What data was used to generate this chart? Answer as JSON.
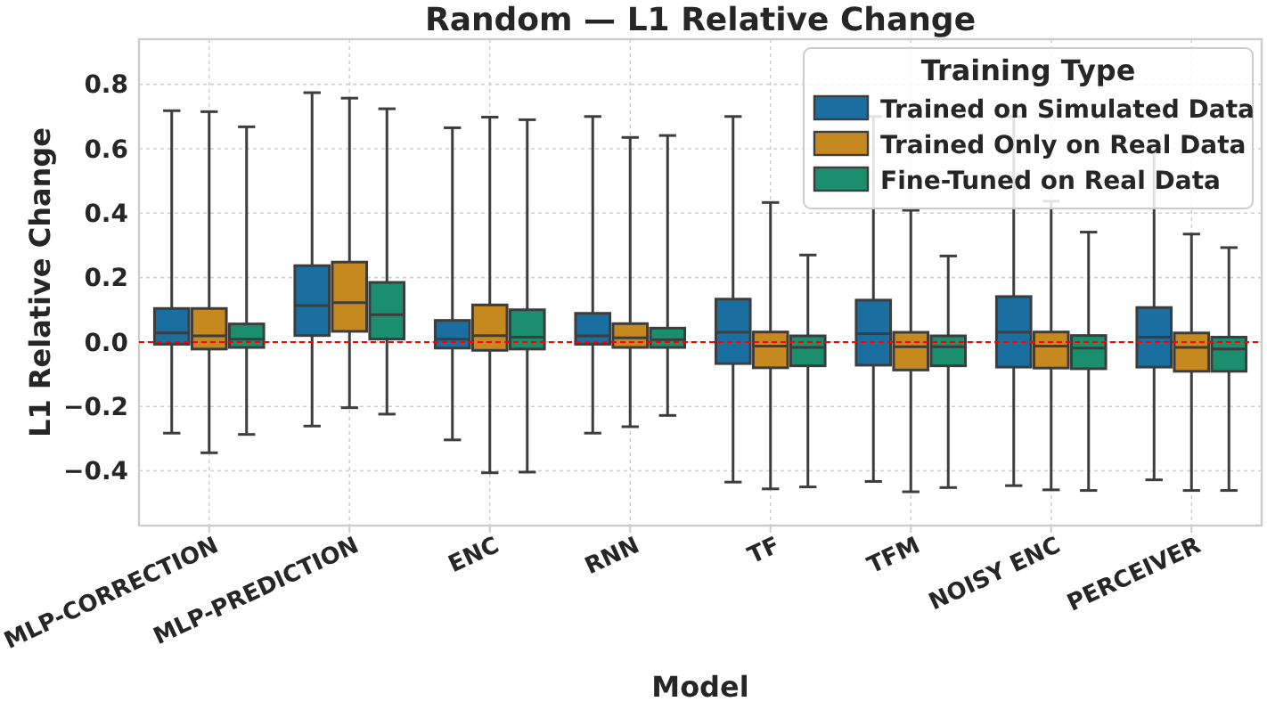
{
  "chart_data": {
    "type": "box",
    "title": "Random — L1 Relative Change",
    "xlabel": "Model",
    "ylabel": "L1 Relative Change",
    "legend_title": "Training Type",
    "legend": "top right",
    "grid": true,
    "categories": [
      "MLP-CORRECTION",
      "MLP-PREDICTION",
      "ENC",
      "RNN",
      "TF",
      "TFM",
      "NOISY ENC",
      "PERCEIVER"
    ],
    "ylim": [
      -0.57,
      0.94
    ],
    "yticks": [
      {
        "value": -0.4,
        "label": "−0.4"
      },
      {
        "value": -0.2,
        "label": "−0.2"
      },
      {
        "value": 0,
        "label": "0.0"
      },
      {
        "value": 0.2,
        "label": "0.2"
      },
      {
        "value": 0.4,
        "label": "0.4"
      },
      {
        "value": 0.6,
        "label": "0.6"
      },
      {
        "value": 0.8,
        "label": "0.8"
      }
    ],
    "ref_lines": [
      {
        "axis": "y",
        "value": 0,
        "color": "#ff0000",
        "line_style": "dashed"
      }
    ],
    "series": [
      {
        "name": "Trained on Simulated Data",
        "color": "#1a6fa0",
        "boxes": [
          {
            "low": -0.283,
            "q1": -0.007,
            "median": 0.028,
            "q3": 0.104,
            "high": 0.718
          },
          {
            "low": -0.261,
            "q1": 0.02,
            "median": 0.113,
            "q3": 0.237,
            "high": 0.774
          },
          {
            "low": -0.304,
            "q1": -0.019,
            "median": 0.009,
            "q3": 0.067,
            "high": 0.665
          },
          {
            "low": -0.283,
            "q1": -0.007,
            "median": 0.019,
            "q3": 0.089,
            "high": 0.7
          },
          {
            "low": -0.435,
            "q1": -0.067,
            "median": 0.03,
            "q3": 0.133,
            "high": 0.7
          },
          {
            "low": -0.433,
            "q1": -0.072,
            "median": 0.026,
            "q3": 0.13,
            "high": 0.7
          },
          {
            "low": -0.446,
            "q1": -0.078,
            "median": 0.03,
            "q3": 0.141,
            "high": 0.7
          },
          {
            "low": -0.428,
            "q1": -0.078,
            "median": 0.015,
            "q3": 0.107,
            "high": 0.6
          }
        ]
      },
      {
        "name": "Trained Only on Real Data",
        "color": "#c5891f",
        "boxes": [
          {
            "low": -0.344,
            "q1": -0.022,
            "median": 0.019,
            "q3": 0.104,
            "high": 0.715
          },
          {
            "low": -0.204,
            "q1": 0.033,
            "median": 0.122,
            "q3": 0.248,
            "high": 0.757
          },
          {
            "low": -0.406,
            "q1": -0.026,
            "median": 0.02,
            "q3": 0.115,
            "high": 0.698
          },
          {
            "low": -0.263,
            "q1": -0.017,
            "median": 0.013,
            "q3": 0.057,
            "high": 0.635
          },
          {
            "low": -0.456,
            "q1": -0.08,
            "median": -0.013,
            "q3": 0.031,
            "high": 0.433
          },
          {
            "low": -0.465,
            "q1": -0.087,
            "median": -0.015,
            "q3": 0.03,
            "high": 0.409
          },
          {
            "low": -0.459,
            "q1": -0.081,
            "median": -0.013,
            "q3": 0.031,
            "high": 0.437
          },
          {
            "low": -0.461,
            "q1": -0.091,
            "median": -0.017,
            "q3": 0.028,
            "high": 0.335
          }
        ]
      },
      {
        "name": "Fine-Tuned on Real Data",
        "color": "#1b8f6d",
        "boxes": [
          {
            "low": -0.287,
            "q1": -0.017,
            "median": 0.009,
            "q3": 0.056,
            "high": 0.668
          },
          {
            "low": -0.224,
            "q1": 0.009,
            "median": 0.085,
            "q3": 0.185,
            "high": 0.724
          },
          {
            "low": -0.404,
            "q1": -0.022,
            "median": 0.015,
            "q3": 0.1,
            "high": 0.69
          },
          {
            "low": -0.228,
            "q1": -0.017,
            "median": 0.007,
            "q3": 0.043,
            "high": 0.641
          },
          {
            "low": -0.45,
            "q1": -0.074,
            "median": -0.017,
            "q3": 0.019,
            "high": 0.27
          },
          {
            "low": -0.452,
            "q1": -0.074,
            "median": -0.015,
            "q3": 0.019,
            "high": 0.267
          },
          {
            "low": -0.461,
            "q1": -0.083,
            "median": -0.019,
            "q3": 0.02,
            "high": 0.341
          },
          {
            "low": -0.461,
            "q1": -0.091,
            "median": -0.022,
            "q3": 0.015,
            "high": 0.293
          }
        ]
      }
    ]
  }
}
